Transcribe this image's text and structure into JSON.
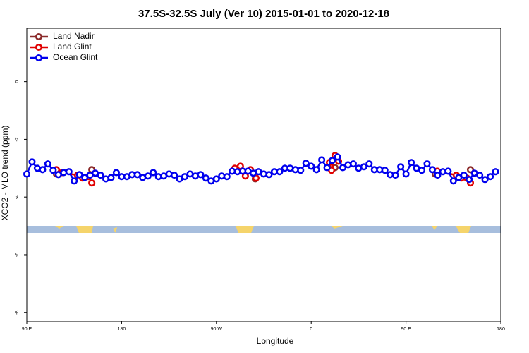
{
  "chart_data": {
    "type": "line",
    "title": "37.5S-32.5S July (Ver 10)   2015-01-01 to 2020-12-18",
    "x_label": "Longitude",
    "y_label": "XCO2 - MLO trend (ppm)",
    "xlim": [
      90,
      540
    ],
    "xticks": [
      {
        "value": 90,
        "label": "90 E"
      },
      {
        "value": 180,
        "label": "180"
      },
      {
        "value": 270,
        "label": "90 W"
      },
      {
        "value": 360,
        "label": "0"
      },
      {
        "value": 450,
        "label": "90 E"
      },
      {
        "value": 540,
        "label": "180"
      }
    ],
    "ylim": [
      -8.3,
      1.85
    ],
    "yticks": [
      -8,
      -6,
      -4,
      -2,
      0
    ],
    "legend": "top-left",
    "series": [
      {
        "name": "Land Nadir",
        "color": "#8b2a2a",
        "x": [
          118.1,
          null,
          151.7,
          null,
          306.9,
          null,
          382.6,
          null,
          477.7,
          null,
          511.2
        ],
        "values": [
          -3.2,
          null,
          -3.05,
          null,
          -3.37,
          null,
          -2.98,
          null,
          -3.2,
          null,
          -3.05
        ]
      },
      {
        "name": "Land Glint",
        "color": "#e00000",
        "x": [
          118.1,
          123.5,
          138.2,
          142.9,
          148.3,
          151.7,
          null,
          287.5,
          292.8,
          297.5,
          302.3,
          307.6,
          null,
          377.3,
          379.3,
          382.6,
          386.0,
          null,
          479.7,
          497.8,
          502.5,
          507.8,
          511.2
        ],
        "values": [
          -3.05,
          -3.15,
          -3.24,
          -3.34,
          -3.29,
          -3.51,
          null,
          -3.0,
          -2.93,
          -3.27,
          -3.05,
          -3.34,
          null,
          -2.8,
          -3.07,
          -2.56,
          -2.76,
          null,
          -3.1,
          -3.24,
          -3.34,
          -3.34,
          -3.51
        ]
      },
      {
        "name": "Ocean Glint",
        "color": "#0000ee",
        "x": [
          90,
          95,
          100,
          105,
          110,
          115,
          120,
          125,
          130,
          135,
          140,
          145,
          150,
          155,
          160,
          165,
          170,
          175,
          180,
          185,
          190,
          195,
          200,
          205,
          210,
          215,
          220,
          225,
          230,
          235,
          240,
          245,
          250,
          255,
          260,
          265,
          270,
          275,
          280,
          285,
          290,
          295,
          300,
          305,
          310,
          315,
          320,
          325,
          330,
          335,
          340,
          345,
          350,
          355,
          360,
          365,
          370,
          375,
          380,
          385,
          390,
          395,
          400,
          405,
          410,
          415,
          420,
          425,
          430,
          435,
          440,
          445,
          450,
          455,
          460,
          465,
          470,
          475,
          480,
          485,
          490,
          495,
          500,
          505,
          510,
          515,
          520,
          525,
          530,
          535
        ],
        "values": [
          -3.2,
          -2.78,
          -3.0,
          -3.05,
          -2.85,
          -3.07,
          -3.22,
          -3.15,
          -3.12,
          -3.44,
          -3.22,
          -3.32,
          -3.24,
          -3.17,
          -3.24,
          -3.37,
          -3.32,
          -3.15,
          -3.29,
          -3.29,
          -3.22,
          -3.22,
          -3.32,
          -3.27,
          -3.15,
          -3.29,
          -3.27,
          -3.2,
          -3.24,
          -3.37,
          -3.29,
          -3.2,
          -3.27,
          -3.22,
          -3.34,
          -3.44,
          -3.37,
          -3.27,
          -3.29,
          -3.1,
          -3.12,
          -3.1,
          -3.1,
          -3.17,
          -3.12,
          -3.2,
          -3.22,
          -3.12,
          -3.12,
          -3.0,
          -3.0,
          -3.05,
          -3.07,
          -2.83,
          -2.93,
          -3.05,
          -2.71,
          -2.98,
          -2.73,
          -2.61,
          -2.98,
          -2.88,
          -2.85,
          -3.0,
          -2.95,
          -2.85,
          -3.05,
          -3.05,
          -3.07,
          -3.22,
          -3.24,
          -2.95,
          -3.2,
          -2.8,
          -3.0,
          -3.07,
          -2.85,
          -3.05,
          -3.24,
          -3.12,
          -3.1,
          -3.44,
          -3.32,
          -3.24,
          -3.39,
          -3.17,
          -3.24,
          -3.39,
          -3.29,
          -3.12
        ]
      }
    ]
  }
}
